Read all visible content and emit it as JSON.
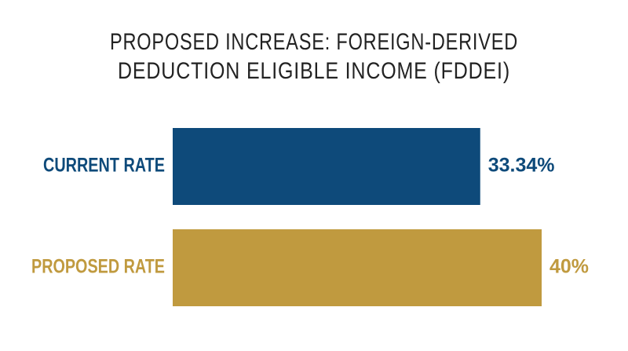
{
  "chart_data": {
    "type": "hbar",
    "title": [
      "PROPOSED INCREASE: FOREIGN-DERIVED",
      "DEDUCTION ELIGIBLE INCOME (FDDEI)"
    ],
    "categories": [
      "CURRENT RATE",
      "PROPOSED RATE"
    ],
    "values": [
      33.34,
      40
    ],
    "value_labels": [
      "33.34%",
      "40%"
    ],
    "colors": [
      "#0e4a7a",
      "#c09a3f"
    ]
  }
}
